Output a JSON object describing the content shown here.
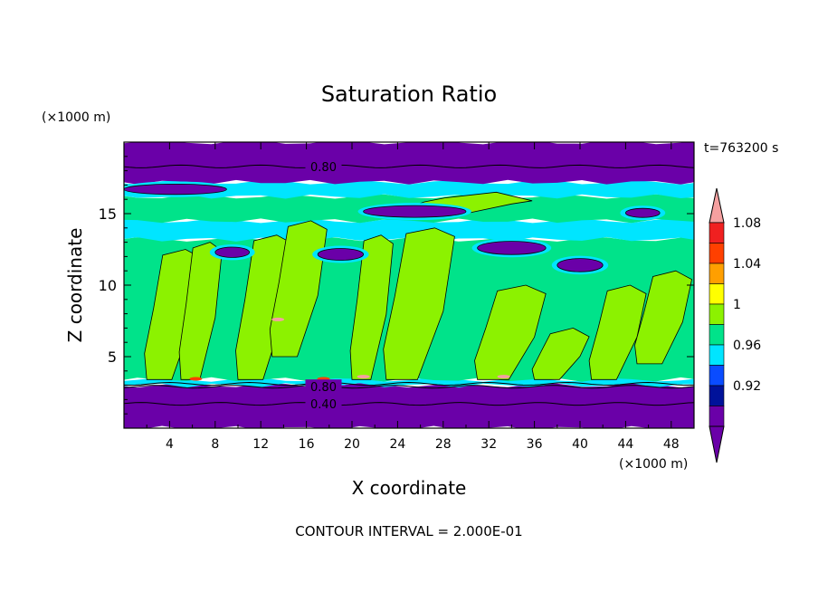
{
  "chart_data": {
    "type": "heatmap",
    "title": "Saturation Ratio",
    "xlabel": "X coordinate",
    "ylabel": "Z coordinate",
    "x_unit": "(×1000 m)",
    "y_unit": "(×1000 m)",
    "time_label": "t=763200 s",
    "footer": "CONTOUR INTERVAL = 2.000E-01",
    "xlim": [
      0,
      50
    ],
    "ylim": [
      0,
      20
    ],
    "x_ticks": [
      "4",
      "8",
      "12",
      "16",
      "20",
      "24",
      "28",
      "32",
      "36",
      "40",
      "44",
      "48"
    ],
    "y_ticks": [
      "5",
      "10",
      "15"
    ],
    "contour_labels": [
      {
        "text": "0.80",
        "x": 17.5,
        "y": 18.3
      },
      {
        "text": "0.80",
        "x": 17.5,
        "y": 2.9
      },
      {
        "text": "0.40",
        "x": 17.5,
        "y": 1.7
      }
    ],
    "colorbar": {
      "levels": [
        {
          "color": "#6a00a8",
          "label": ""
        },
        {
          "color": "#00129a",
          "label": "0.92"
        },
        {
          "color": "#0a4cff",
          "label": ""
        },
        {
          "color": "#00e5ff",
          "label": "0.96"
        },
        {
          "color": "#00e38a",
          "label": ""
        },
        {
          "color": "#8cf200",
          "label": "1"
        },
        {
          "color": "#ffff00",
          "label": ""
        },
        {
          "color": "#ff9f00",
          "label": "1.04"
        },
        {
          "color": "#ff4000",
          "label": ""
        },
        {
          "color": "#f02020",
          "label": "1.08"
        }
      ],
      "top_arrow_color": "#f5a0a0",
      "bottom_arrow_color": "#6a00a8"
    },
    "bands": [
      {
        "z0": 0,
        "z1": 3.0,
        "value": 0.6
      },
      {
        "z0": 3.0,
        "z1": 3.4,
        "value": 0.95
      },
      {
        "z0": 3.4,
        "z1": 13.2,
        "value": 0.98
      },
      {
        "z0": 13.2,
        "z1": 14.5,
        "value": 0.96
      },
      {
        "z0": 14.5,
        "z1": 16.2,
        "value": 0.98
      },
      {
        "z0": 16.2,
        "z1": 17.2,
        "value": 0.95
      },
      {
        "z0": 17.2,
        "z1": 20,
        "value": 0.8
      }
    ],
    "plumes": [
      {
        "x": [
          2,
          6
        ],
        "z": [
          3.4,
          12.5
        ],
        "value": 1.0
      },
      {
        "x": [
          5,
          8
        ],
        "z": [
          3.4,
          13.0
        ],
        "value": 1.0
      },
      {
        "x": [
          10,
          14
        ],
        "z": [
          3.4,
          13.5
        ],
        "value": 1.0
      },
      {
        "x": [
          13,
          17
        ],
        "z": [
          5,
          14.5
        ],
        "value": 1.0
      },
      {
        "x": [
          20,
          23
        ],
        "z": [
          3.4,
          13.5
        ],
        "value": 1.0
      },
      {
        "x": [
          23,
          28
        ],
        "z": [
          3.4,
          14
        ],
        "value": 1.0
      },
      {
        "x": [
          31,
          36
        ],
        "z": [
          3.4,
          10
        ],
        "value": 1.0
      },
      {
        "x": [
          36,
          40
        ],
        "z": [
          3.4,
          7
        ],
        "value": 1.0
      },
      {
        "x": [
          41,
          45
        ],
        "z": [
          3.4,
          10
        ],
        "value": 1.0
      },
      {
        "x": [
          45,
          49
        ],
        "z": [
          4.5,
          11
        ],
        "value": 1.0
      },
      {
        "x": [
          25,
          34
        ],
        "z": [
          15,
          16.5
        ],
        "value": 1.0
      }
    ],
    "dry_pockets": [
      {
        "x": [
          21,
          30
        ],
        "z": [
          14.8,
          15.5
        ],
        "value": 0.8
      },
      {
        "x": [
          31,
          37
        ],
        "z": [
          12.2,
          13.0
        ],
        "value": 0.8
      },
      {
        "x": [
          8,
          11
        ],
        "z": [
          12.0,
          12.6
        ],
        "value": 0.8
      },
      {
        "x": [
          17,
          21
        ],
        "z": [
          11.8,
          12.5
        ],
        "value": 0.8
      },
      {
        "x": [
          38,
          42
        ],
        "z": [
          11.0,
          11.8
        ],
        "value": 0.8
      },
      {
        "x": [
          0,
          9
        ],
        "z": [
          16.4,
          17.0
        ],
        "value": 0.8
      },
      {
        "x": [
          44,
          47
        ],
        "z": [
          14.8,
          15.3
        ],
        "value": 0.8
      }
    ],
    "moist_spots": [
      {
        "x": 6.3,
        "z": 3.45,
        "value": 1.04
      },
      {
        "x": 17.5,
        "z": 3.45,
        "value": 1.04
      },
      {
        "x": 21.0,
        "z": 3.6,
        "value": 1.08
      },
      {
        "x": 33.3,
        "z": 3.6,
        "value": 1.08
      },
      {
        "x": 13.5,
        "z": 7.6,
        "value": 1.08
      }
    ]
  }
}
